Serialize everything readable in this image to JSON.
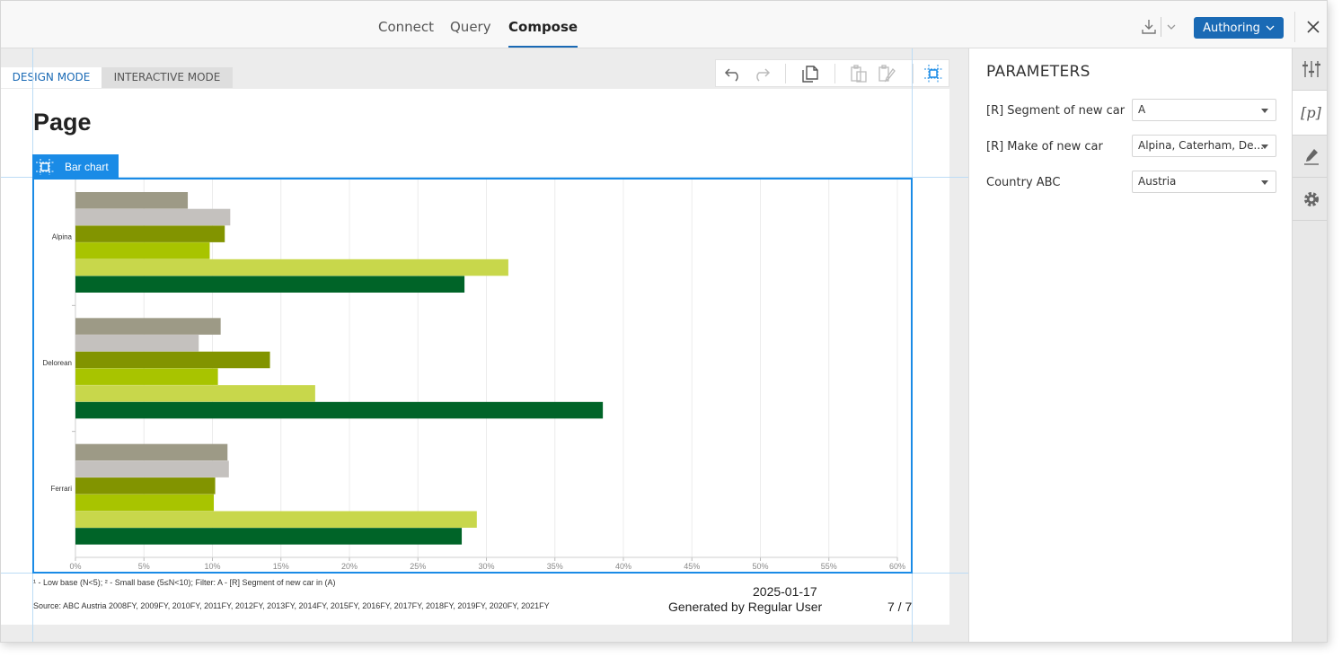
{
  "topbar": {
    "tabs": [
      {
        "label": "Connect",
        "active": false
      },
      {
        "label": "Query",
        "active": false
      },
      {
        "label": "Compose",
        "active": true
      }
    ],
    "authoring_label": "Authoring",
    "accent_color": "#1a6ab5"
  },
  "canvas": {
    "modes": {
      "design": "DESIGN MODE",
      "interactive": "INTERACTIVE MODE",
      "active": "design"
    },
    "page_title": "Page",
    "chart_widget_label": "Bar chart",
    "footnote": "¹ - Low base (N<5);   ² - Small base (5≤N<10);   Filter: A - [R] Segment of new car in (A)",
    "source": "Source: ABC Austria 2008FY, 2009FY, 2010FY, 2011FY, 2012FY, 2013FY, 2014FY, 2015FY, 2016FY, 2017FY, 2018FY, 2019FY, 2020FY, 2021FY",
    "date": "2025-01-17",
    "generated_by": "Generated by Regular User",
    "page_number": "7 / 7"
  },
  "params": {
    "title": "PARAMETERS",
    "items": [
      {
        "label": "[R] Segment of new car",
        "value": "A"
      },
      {
        "label": "[R] Make of new car",
        "value": "Alpina, Caterham, De..."
      },
      {
        "label": "Country ABC",
        "value": "Austria"
      }
    ]
  },
  "rail": {
    "param_symbol": "[p]"
  },
  "chart_data": {
    "type": "bar",
    "orientation": "horizontal",
    "categories": [
      "Alpina",
      "Delorean",
      "Ferrari"
    ],
    "series": [
      {
        "color": "#9d9a86",
        "values": [
          8.2,
          10.6,
          11.1
        ]
      },
      {
        "color": "#c4c1be",
        "values": [
          11.3,
          9.0,
          11.2
        ]
      },
      {
        "color": "#829400",
        "values": [
          10.9,
          14.2,
          10.2
        ]
      },
      {
        "color": "#a8c400",
        "values": [
          9.8,
          10.4,
          10.1
        ]
      },
      {
        "color": "#c8d74b",
        "values": [
          31.6,
          17.5,
          29.3
        ]
      },
      {
        "color": "#006428",
        "values": [
          28.4,
          38.5,
          28.2
        ]
      }
    ],
    "xlim": [
      0,
      60
    ],
    "xticks": [
      "0%",
      "5%",
      "10%",
      "15%",
      "20%",
      "25%",
      "30%",
      "35%",
      "40%",
      "45%",
      "50%",
      "55%",
      "60%"
    ],
    "grid": true,
    "legend": "none"
  }
}
